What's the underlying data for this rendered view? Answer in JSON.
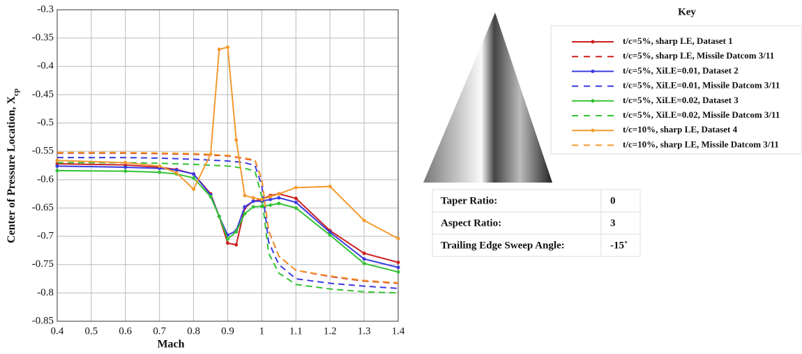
{
  "chart_data": {
    "type": "line",
    "xlabel": "Mach",
    "ylabel": "Center of Pressure Location, X",
    "ylabel_subscript": "cp",
    "legend_title": "Key",
    "xlim": [
      0.4,
      1.4
    ],
    "xticks": [
      0.4,
      0.5,
      0.6,
      0.7,
      0.8,
      0.9,
      1,
      1.1,
      1.2,
      1.3,
      1.4
    ],
    "ylim": [
      -0.85,
      -0.3
    ],
    "yticks": [
      -0.85,
      -0.8,
      -0.75,
      -0.7,
      -0.65,
      -0.6,
      -0.55,
      -0.5,
      -0.45,
      -0.4,
      -0.35,
      -0.3
    ],
    "grid": true,
    "series": [
      {
        "name": "t/c=5%, sharp LE, Dataset 1",
        "color": "#cc1f1f",
        "dashed": false,
        "markers": true,
        "x": [
          0.4,
          0.6,
          0.7,
          0.75,
          0.8,
          0.85,
          0.875,
          0.9,
          0.925,
          0.95,
          0.975,
          1.0,
          1.025,
          1.05,
          1.1,
          1.2,
          1.3,
          1.4
        ],
        "values": [
          -0.572,
          -0.574,
          -0.578,
          -0.582,
          -0.59,
          -0.625,
          -0.665,
          -0.712,
          -0.715,
          -0.65,
          -0.638,
          -0.635,
          -0.628,
          -0.625,
          -0.633,
          -0.69,
          -0.73,
          -0.746
        ]
      },
      {
        "name": "t/c=5%, sharp LE, Missile Datcom 3/11",
        "color": "#cc1f1f",
        "dashed": true,
        "markers": false,
        "x": [
          0.4,
          0.6,
          0.7,
          0.8,
          0.9,
          0.95,
          0.98,
          1.0,
          1.02,
          1.05,
          1.1,
          1.2,
          1.3,
          1.4
        ],
        "values": [
          -0.553,
          -0.553,
          -0.554,
          -0.555,
          -0.558,
          -0.563,
          -0.566,
          -0.6,
          -0.69,
          -0.735,
          -0.76,
          -0.771,
          -0.779,
          -0.783
        ]
      },
      {
        "name": "t/c=5%, XiLE=0.01, Dataset 2",
        "color": "#3a3ae0",
        "dashed": false,
        "markers": true,
        "x": [
          0.4,
          0.6,
          0.7,
          0.75,
          0.8,
          0.85,
          0.875,
          0.9,
          0.925,
          0.95,
          0.975,
          1.0,
          1.025,
          1.05,
          1.1,
          1.2,
          1.3,
          1.4
        ],
        "values": [
          -0.576,
          -0.578,
          -0.58,
          -0.583,
          -0.59,
          -0.627,
          -0.665,
          -0.698,
          -0.69,
          -0.648,
          -0.638,
          -0.638,
          -0.635,
          -0.632,
          -0.64,
          -0.693,
          -0.74,
          -0.755
        ]
      },
      {
        "name": "t/c=5%, XiLE=0.01, Missile Datcom 3/11",
        "color": "#3a3ae0",
        "dashed": true,
        "markers": false,
        "x": [
          0.4,
          0.6,
          0.7,
          0.8,
          0.9,
          0.95,
          0.98,
          1.0,
          1.02,
          1.05,
          1.1,
          1.2,
          1.3,
          1.4
        ],
        "values": [
          -0.561,
          -0.561,
          -0.562,
          -0.564,
          -0.567,
          -0.57,
          -0.575,
          -0.61,
          -0.71,
          -0.75,
          -0.775,
          -0.783,
          -0.788,
          -0.792
        ]
      },
      {
        "name": "t/c=5%, XiLE=0.02, Dataset 3",
        "color": "#33c233",
        "dashed": false,
        "markers": true,
        "x": [
          0.4,
          0.6,
          0.7,
          0.75,
          0.8,
          0.85,
          0.875,
          0.9,
          0.925,
          0.95,
          0.975,
          1.0,
          1.025,
          1.05,
          1.1,
          1.2,
          1.3,
          1.4
        ],
        "values": [
          -0.584,
          -0.585,
          -0.587,
          -0.59,
          -0.597,
          -0.63,
          -0.665,
          -0.705,
          -0.692,
          -0.66,
          -0.648,
          -0.647,
          -0.645,
          -0.642,
          -0.65,
          -0.698,
          -0.748,
          -0.763
        ]
      },
      {
        "name": "t/c=5%, XiLE=0.02, Missile Datcom 3/11",
        "color": "#33c233",
        "dashed": true,
        "markers": false,
        "x": [
          0.4,
          0.6,
          0.7,
          0.8,
          0.9,
          0.95,
          0.98,
          1.0,
          1.02,
          1.05,
          1.1,
          1.2,
          1.3,
          1.4
        ],
        "values": [
          -0.57,
          -0.57,
          -0.571,
          -0.573,
          -0.576,
          -0.58,
          -0.585,
          -0.63,
          -0.73,
          -0.765,
          -0.785,
          -0.793,
          -0.798,
          -0.8
        ]
      },
      {
        "name": "t/c=10%, sharp LE, Dataset 4",
        "color": "#f39a2e",
        "dashed": false,
        "markers": true,
        "x": [
          0.4,
          0.6,
          0.7,
          0.75,
          0.8,
          0.85,
          0.875,
          0.9,
          0.925,
          0.95,
          0.975,
          1.0,
          1.025,
          1.05,
          1.1,
          1.2,
          1.3,
          1.4
        ],
        "values": [
          -0.566,
          -0.57,
          -0.576,
          -0.588,
          -0.617,
          -0.555,
          -0.37,
          -0.366,
          -0.53,
          -0.628,
          -0.632,
          -0.635,
          -0.63,
          -0.625,
          -0.614,
          -0.612,
          -0.672,
          -0.704
        ]
      },
      {
        "name": "t/c=10%, sharp LE, Missile Datcom 3/11",
        "color": "#f39a2e",
        "dashed": true,
        "markers": false,
        "x": [
          0.4,
          0.6,
          0.7,
          0.8,
          0.9,
          0.95,
          0.98,
          1.0,
          1.02,
          1.05,
          1.1,
          1.2,
          1.3,
          1.4
        ],
        "values": [
          -0.552,
          -0.552,
          -0.553,
          -0.554,
          -0.557,
          -0.562,
          -0.565,
          -0.6,
          -0.69,
          -0.735,
          -0.76,
          -0.77,
          -0.778,
          -0.782
        ]
      }
    ]
  },
  "table": {
    "rows": [
      [
        "Taper Ratio:",
        "0"
      ],
      [
        "Aspect Ratio:",
        "3"
      ],
      [
        "Trailing Edge Sweep Angle:",
        "-15˚"
      ]
    ]
  }
}
